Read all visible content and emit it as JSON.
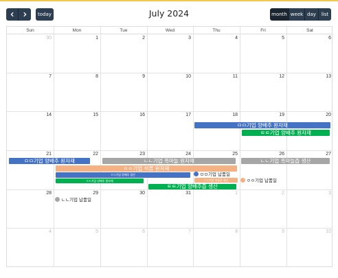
{
  "toolbar": {
    "prev_icon": "chevron-left-icon",
    "next_icon": "chevron-right-icon",
    "today_label": "today",
    "title": "July 2024",
    "views": [
      "month",
      "week",
      "day",
      "list"
    ],
    "active_view": "month"
  },
  "weekdays": [
    "Sun",
    "Mon",
    "Tue",
    "Wed",
    "Thu",
    "Fri",
    "Sat"
  ],
  "weeks": [
    [
      {
        "d": "30",
        "other": true
      },
      {
        "d": "1"
      },
      {
        "d": "2"
      },
      {
        "d": "3"
      },
      {
        "d": "4"
      },
      {
        "d": "5"
      },
      {
        "d": "6"
      }
    ],
    [
      {
        "d": "7"
      },
      {
        "d": "8"
      },
      {
        "d": "9"
      },
      {
        "d": "10"
      },
      {
        "d": "11"
      },
      {
        "d": "12"
      },
      {
        "d": "13"
      }
    ],
    [
      {
        "d": "14"
      },
      {
        "d": "15"
      },
      {
        "d": "16"
      },
      {
        "d": "17"
      },
      {
        "d": "18"
      },
      {
        "d": "19"
      },
      {
        "d": "20"
      }
    ],
    [
      {
        "d": "21"
      },
      {
        "d": "22"
      },
      {
        "d": "23"
      },
      {
        "d": "24"
      },
      {
        "d": "25"
      },
      {
        "d": "26"
      },
      {
        "d": "27"
      }
    ],
    [
      {
        "d": "28"
      },
      {
        "d": "29"
      },
      {
        "d": "30"
      },
      {
        "d": "31"
      },
      {
        "d": "1",
        "other": true
      },
      {
        "d": "2",
        "other": true
      },
      {
        "d": "3",
        "other": true
      }
    ],
    [
      {
        "d": "4",
        "other": true
      },
      {
        "d": "5",
        "other": true
      },
      {
        "d": "6",
        "other": true
      },
      {
        "d": "7",
        "other": true
      },
      {
        "d": "8",
        "other": true
      },
      {
        "d": "9",
        "other": true
      },
      {
        "d": "10",
        "other": true
      }
    ]
  ],
  "colors": {
    "blue": "#4472c4",
    "green": "#00b050",
    "gray": "#a6a6a6",
    "orange": "#f4b183",
    "button": "#2c3e50",
    "accent": "#f3c64c"
  },
  "events": {
    "w3_blue": "ㅁㅁ기업 양배추 원자재",
    "w3_green": "ㅌㅌ기업 양배추 원자재",
    "w4_blue": "ㅁㅁ기업 양배추 원자재",
    "w4_gray1": "ㄴㄴ기업 흑마늘 원자재",
    "w4_gray2": "ㄴㄴ기업 흑마늘즙 생산",
    "w4_orange": "ㅇㅇ기업 석류 원자재",
    "w4_blue_small": "ㅁㅁ기업 양배추 생산",
    "w4_dot_blue": "ㅁㅁ기업 납품일",
    "w4_orange_small": "ㅇㅇ기업 석류즙 생산",
    "w4_green_small": "ㅌㅌ기업 양배추 원자재",
    "w4_dot_orange": "ㅇㅇ기업 납품일",
    "w4_green2": "ㅌㅌ기업 양배추즙 생산",
    "w5_dot_gray": "ㄴㄴ기업 납품일"
  }
}
